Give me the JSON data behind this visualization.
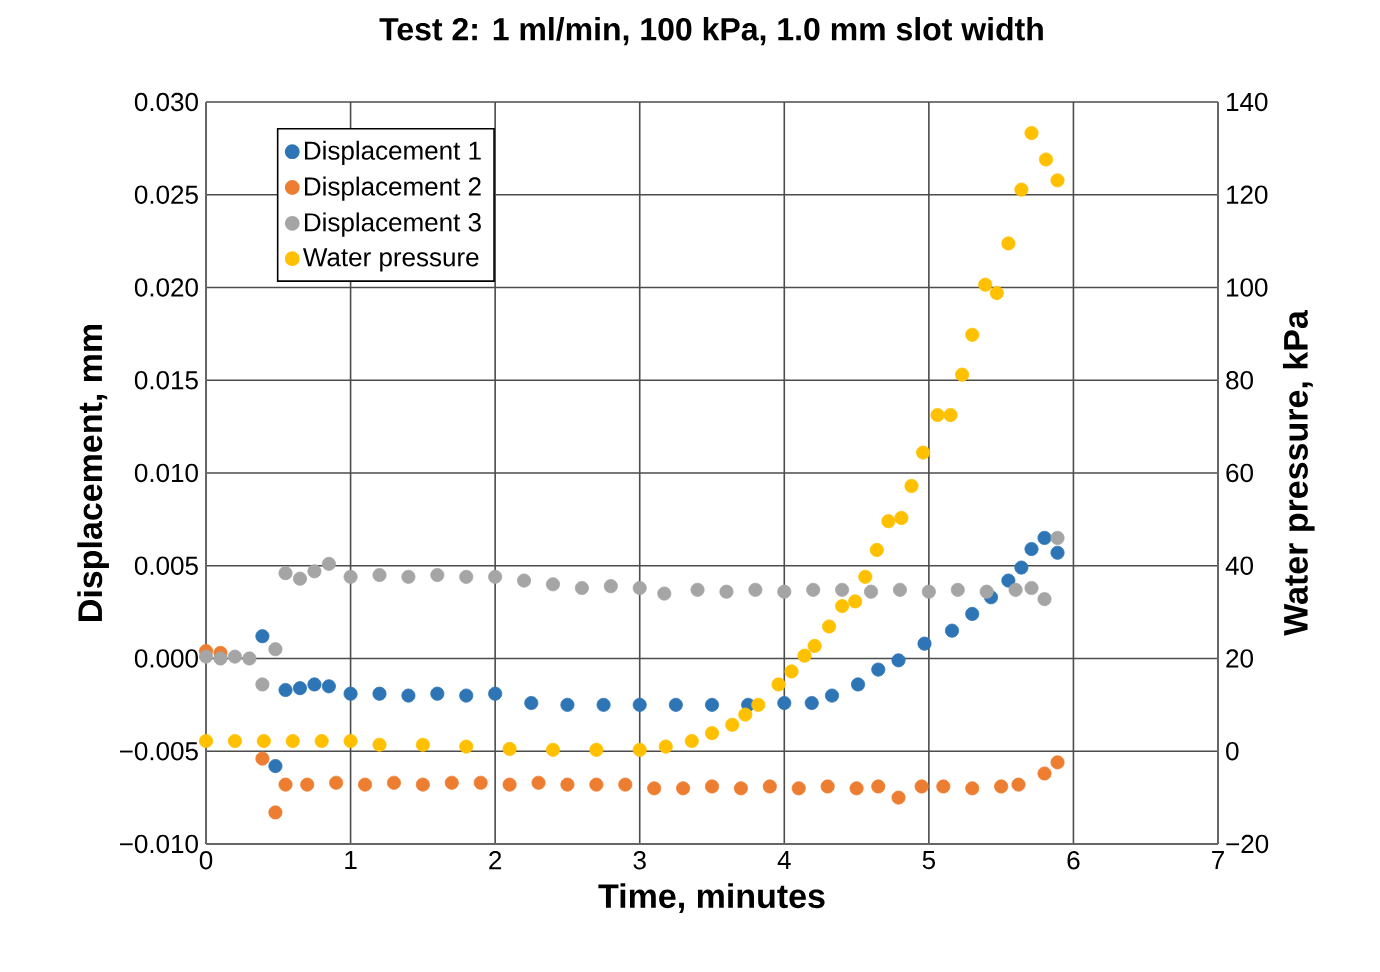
{
  "chart_data": {
    "type": "scatter",
    "title": "Test 2: 1 ml/min, 100 kPa, 1.0 mm slot width",
    "xlabel": "Time, minutes",
    "ylabel": "Displacement, mm",
    "y2label": "Water pressure, kPa",
    "xlim": [
      0,
      7
    ],
    "xticks": [
      0,
      1,
      2,
      3,
      4,
      5,
      6,
      7
    ],
    "ylim": [
      -0.01,
      0.03
    ],
    "yticks": [
      {
        "value": -0.01,
        "label": "−0.010"
      },
      {
        "value": -0.005,
        "label": "−0.005"
      },
      {
        "value": 0,
        "label": "0.000"
      },
      {
        "value": 0.005,
        "label": "0.005"
      },
      {
        "value": 0.01,
        "label": "0.010"
      },
      {
        "value": 0.015,
        "label": "0.015"
      },
      {
        "value": 0.02,
        "label": "0.020"
      },
      {
        "value": 0.025,
        "label": "0.025"
      },
      {
        "value": 0.03,
        "label": "0.030"
      }
    ],
    "y2lim": [
      -20,
      140
    ],
    "y2ticks": [
      {
        "value": -20,
        "label": "−20"
      },
      0,
      20,
      40,
      60,
      80,
      100,
      120,
      140
    ],
    "grid": true,
    "legend": "top left",
    "marker": "circle",
    "series": [
      {
        "name": "Displacement 1",
        "color": "#2e75b6",
        "x": [
          0.39,
          0.48,
          0.55,
          0.65,
          0.75,
          0.85,
          1.0,
          1.2,
          1.4,
          1.6,
          1.8,
          2.0,
          2.25,
          2.5,
          2.75,
          3.0,
          3.25,
          3.5,
          3.75,
          4.0,
          4.19,
          4.33,
          4.51,
          4.65,
          4.79,
          4.97,
          5.16,
          5.3,
          5.43,
          5.55,
          5.64,
          5.71,
          5.8,
          5.89
        ],
        "values": [
          0.0012,
          -0.0058,
          -0.0017,
          -0.0016,
          -0.0014,
          -0.0015,
          -0.0019,
          -0.0019,
          -0.002,
          -0.0019,
          -0.002,
          -0.0019,
          -0.0024,
          -0.0025,
          -0.0025,
          -0.0025,
          -0.0025,
          -0.0025,
          -0.0025,
          -0.0024,
          -0.0024,
          -0.002,
          -0.0014,
          -0.0006,
          -0.0001,
          0.0008,
          0.0015,
          0.0024,
          0.0033,
          0.0042,
          0.0049,
          0.0059,
          0.0065,
          0.0057
        ]
      },
      {
        "name": "Displacement 2",
        "color": "#ed7d31",
        "x": [
          0.0,
          0.1,
          0.2,
          0.3,
          0.39,
          0.48,
          0.55,
          0.7,
          0.9,
          1.1,
          1.3,
          1.5,
          1.7,
          1.9,
          2.1,
          2.3,
          2.5,
          2.7,
          2.9,
          3.1,
          3.3,
          3.5,
          3.7,
          3.9,
          4.1,
          4.3,
          4.5,
          4.65,
          4.79,
          4.95,
          5.1,
          5.3,
          5.5,
          5.62,
          5.8,
          5.89
        ],
        "values": [
          0.0004,
          0.0003,
          null,
          null,
          -0.0054,
          -0.0083,
          -0.0068,
          -0.0068,
          -0.0067,
          -0.0068,
          -0.0067,
          -0.0068,
          -0.0067,
          -0.0067,
          -0.0068,
          -0.0067,
          -0.0068,
          -0.0068,
          -0.0068,
          -0.007,
          -0.007,
          -0.0069,
          -0.007,
          -0.0069,
          -0.007,
          -0.0069,
          -0.007,
          -0.0069,
          -0.0075,
          -0.0069,
          -0.0069,
          -0.007,
          -0.0069,
          -0.0068,
          -0.0062,
          -0.0056
        ]
      },
      {
        "name": "Displacement 3",
        "color": "#a5a5a5",
        "x": [
          0.0,
          0.1,
          0.2,
          0.3,
          0.39,
          0.48,
          0.55,
          0.65,
          0.75,
          0.85,
          1.0,
          1.2,
          1.4,
          1.6,
          1.8,
          2.0,
          2.2,
          2.4,
          2.6,
          2.8,
          3.0,
          3.17,
          3.4,
          3.6,
          3.8,
          4.0,
          4.2,
          4.4,
          4.6,
          4.8,
          5.0,
          5.2,
          5.4,
          5.6,
          5.71,
          5.8,
          5.89
        ],
        "values": [
          0.0001,
          0.0,
          0.0001,
          0.0,
          -0.0014,
          0.0005,
          0.0046,
          0.0043,
          0.0047,
          0.0051,
          0.0044,
          0.0045,
          0.0044,
          0.0045,
          0.0044,
          0.0044,
          0.0042,
          0.004,
          0.0038,
          0.0039,
          0.0038,
          0.0035,
          0.0037,
          0.0036,
          0.0037,
          0.0036,
          0.0037,
          0.0037,
          0.0036,
          0.0037,
          0.0036,
          0.0037,
          0.0036,
          0.0037,
          0.0038,
          0.0032,
          0.0065
        ]
      },
      {
        "name": "Water pressure",
        "color": "#ffc000",
        "axis": "y2",
        "x": [
          0.0,
          0.2,
          0.4,
          0.6,
          0.8,
          1.0,
          1.2,
          1.5,
          1.8,
          2.1,
          2.4,
          2.7,
          3.0,
          3.18,
          3.36,
          3.5,
          3.64,
          3.73,
          3.82,
          3.96,
          4.05,
          4.14,
          4.21,
          4.31,
          4.4,
          4.49,
          4.56,
          4.64,
          4.72,
          4.81,
          4.88,
          4.96,
          5.06,
          5.15,
          5.23,
          5.3,
          5.39,
          5.47,
          5.55,
          5.64,
          5.71,
          5.81,
          5.89
        ],
        "values": [
          2.2,
          2.2,
          2.2,
          2.2,
          2.2,
          2.2,
          1.4,
          1.4,
          1.0,
          0.5,
          0.3,
          0.3,
          0.3,
          1.0,
          2.2,
          3.9,
          5.7,
          7.9,
          10.0,
          14.4,
          17.2,
          20.6,
          22.7,
          26.9,
          31.3,
          32.3,
          37.6,
          43.4,
          49.6,
          50.3,
          57.2,
          64.4,
          72.5,
          72.5,
          81.2,
          89.8,
          100.6,
          98.8,
          109.5,
          121.1,
          133.3,
          127.6,
          123.1
        ]
      }
    ]
  }
}
